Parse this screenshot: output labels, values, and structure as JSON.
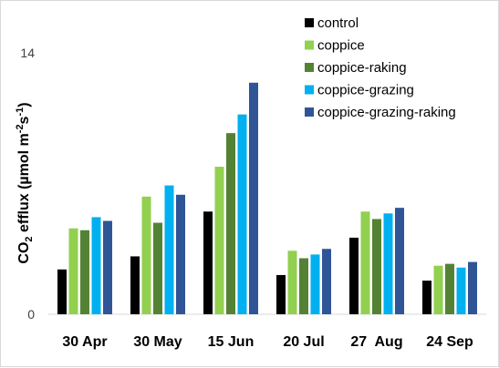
{
  "chart_data": {
    "type": "bar",
    "title": "",
    "ylabel": "CO2 efflux (µmol m-2s-1)",
    "ylabel_parts": {
      "pre": "CO",
      "sub": "2",
      "mid": " efflux (µmol m",
      "sup1": "-2",
      "s": "s",
      "sup2": "-1",
      "post": ")"
    },
    "xlabel": "",
    "ylim": [
      0,
      14
    ],
    "yticks": [
      0,
      14
    ],
    "grid": false,
    "legend_position": "top-right",
    "categories": [
      "30 Apr",
      "30 May",
      "15 Jun",
      "20 Jul",
      "27  Aug",
      "24 Sep"
    ],
    "series": [
      {
        "name": "control",
        "color": "#000000",
        "values": [
          2.4,
          3.1,
          5.5,
          2.1,
          4.1,
          1.8
        ]
      },
      {
        "name": "coppice",
        "color": "#92d050",
        "values": [
          4.6,
          6.3,
          7.9,
          3.4,
          5.5,
          2.6
        ]
      },
      {
        "name": "coppice-raking",
        "color": "#548235",
        "values": [
          4.5,
          4.9,
          9.7,
          3.0,
          5.1,
          2.7
        ]
      },
      {
        "name": "coppice-grazing",
        "color": "#00b0f0",
        "values": [
          5.2,
          6.9,
          10.7,
          3.2,
          5.4,
          2.5
        ]
      },
      {
        "name": "coppice-grazing-raking",
        "color": "#2f5597",
        "values": [
          5.0,
          6.4,
          12.4,
          3.5,
          5.7,
          2.8
        ]
      }
    ]
  }
}
